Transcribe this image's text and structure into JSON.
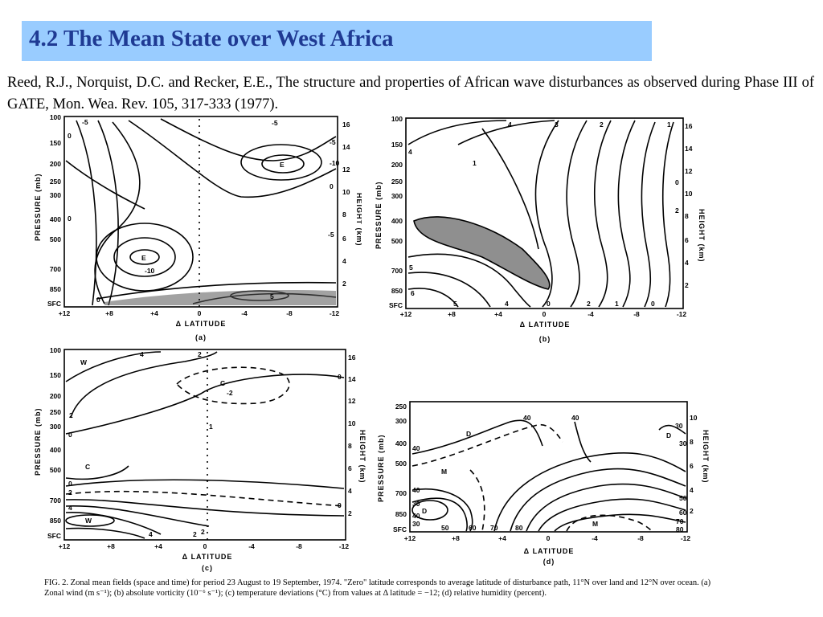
{
  "slide": {
    "title": "4.2 The Mean State over West Africa",
    "citation": "Reed, R.J., Norquist, D.C. and Recker, E.E., The structure and properties of African wave disturbances as observed during Phase III of GATE, Mon. Wea. Rev. 105, 317-333 (1977)."
  },
  "figure": {
    "pressure_label": "PRESSURE (mb)",
    "height_label": "HEIGHT (km)",
    "xlabel": "Δ LATITUDE",
    "x_ticks": [
      "+12",
      "+8",
      "+4",
      "0",
      "-4",
      "-8",
      "-12"
    ],
    "x_ticks_d": [
      "+12",
      "+8",
      "+4",
      "0",
      "-4",
      "-8",
      "-12"
    ],
    "panels": {
      "a": {
        "tag": "(a)",
        "p_ticks": [
          "100",
          "150",
          "200",
          "250",
          "300",
          "400",
          "500",
          "700",
          "850",
          "SFC"
        ],
        "h_ticks": [
          "16",
          "14",
          "12",
          "10",
          "8",
          "6",
          "4",
          "2"
        ],
        "labels": [
          "-5",
          "-5",
          "-5",
          "0",
          "0",
          "0",
          "-10",
          "E",
          "E",
          "-10",
          "-5",
          "5",
          "0"
        ]
      },
      "b": {
        "tag": "(b)",
        "p_ticks": [
          "100",
          "150",
          "200",
          "250",
          "300",
          "400",
          "500",
          "700",
          "850",
          "SFC"
        ],
        "h_ticks": [
          "16",
          "14",
          "12",
          "10",
          "8",
          "6",
          "4",
          "2"
        ],
        "labels": [
          "4",
          "3",
          "2",
          "1",
          "1",
          "0",
          "2",
          "4",
          "5",
          "6",
          "5",
          "4",
          "0",
          "2",
          "1",
          "0"
        ]
      },
      "c": {
        "tag": "(c)",
        "p_ticks": [
          "100",
          "150",
          "200",
          "250",
          "300",
          "400",
          "500",
          "700",
          "850",
          "SFC"
        ],
        "h_ticks": [
          "16",
          "14",
          "12",
          "10",
          "8",
          "6",
          "4",
          "2"
        ],
        "labels": [
          "W",
          "4",
          "2",
          "C",
          "-2",
          "0",
          "2",
          "0",
          "C",
          "0",
          "2",
          "4",
          "W",
          "4",
          "2",
          "0",
          "2",
          "1"
        ]
      },
      "d": {
        "tag": "(d)",
        "p_ticks": [
          "250",
          "300",
          "400",
          "500",
          "700",
          "850",
          "SFC"
        ],
        "h_ticks": [
          "10",
          "8",
          "6",
          "4",
          "2"
        ],
        "labels": [
          "D",
          "40",
          "40",
          "D",
          "30",
          "40",
          "30",
          "M",
          "40",
          "30",
          "50",
          "40",
          "D",
          "30",
          "50",
          "60",
          "70",
          "80",
          "M",
          "60",
          "70",
          "80"
        ]
      }
    },
    "caption": "FIG. 2. Zonal mean fields (space and time) for period 23 August to 19 September, 1974. \"Zero\" latitude corresponds to average latitude of disturbance path, 11°N over land and 12°N over ocean. (a) Zonal wind (m s⁻¹); (b) absolute vorticity (10⁻⁶ s⁻¹); (c) temperature deviations (°C) from values at Δ latitude = −12; (d) relative humidity (percent)."
  }
}
